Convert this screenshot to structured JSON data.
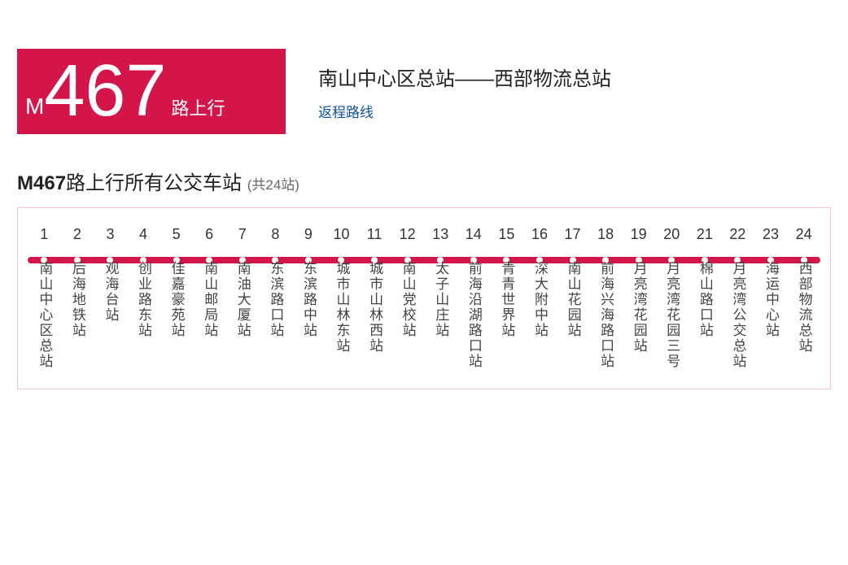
{
  "badge": {
    "prefix": "M",
    "number": "467",
    "suffix": "路上行",
    "bg_color": "#d4154a",
    "text_color": "#ffffff"
  },
  "route": {
    "title": "南山中心区总站——西部物流总站",
    "return_link": "返程路线"
  },
  "section": {
    "title_bold": "M467",
    "title_rest": "路上行所有公交车站 ",
    "count": "(共24站)"
  },
  "line_style": {
    "line_color": "#d4154a",
    "dot_color": "#ffffff",
    "border_color": "#f4c2d0"
  },
  "stops": [
    {
      "n": "1",
      "name": "南山中心区总站"
    },
    {
      "n": "2",
      "name": "后海地铁站"
    },
    {
      "n": "3",
      "name": "观海台站"
    },
    {
      "n": "4",
      "name": "创业路东站"
    },
    {
      "n": "5",
      "name": "佳嘉豪苑站"
    },
    {
      "n": "6",
      "name": "南山邮局站"
    },
    {
      "n": "7",
      "name": "南油大厦站"
    },
    {
      "n": "8",
      "name": "东滨路口站"
    },
    {
      "n": "9",
      "name": "东滨路中站"
    },
    {
      "n": "10",
      "name": "城市山林东站"
    },
    {
      "n": "11",
      "name": "城市山林西站"
    },
    {
      "n": "12",
      "name": "南山党校站"
    },
    {
      "n": "13",
      "name": "太子山庄站"
    },
    {
      "n": "14",
      "name": "前海沿湖路口站"
    },
    {
      "n": "15",
      "name": "青青世界站"
    },
    {
      "n": "16",
      "name": "深大附中站"
    },
    {
      "n": "17",
      "name": "南山花园站"
    },
    {
      "n": "18",
      "name": "前海兴海路口站"
    },
    {
      "n": "19",
      "name": "月亮湾花园站"
    },
    {
      "n": "20",
      "name": "月亮湾花园三号"
    },
    {
      "n": "21",
      "name": "棉山路口站"
    },
    {
      "n": "22",
      "name": "月亮湾公交总站"
    },
    {
      "n": "23",
      "name": "海运中心站"
    },
    {
      "n": "24",
      "name": "西部物流总站"
    }
  ]
}
